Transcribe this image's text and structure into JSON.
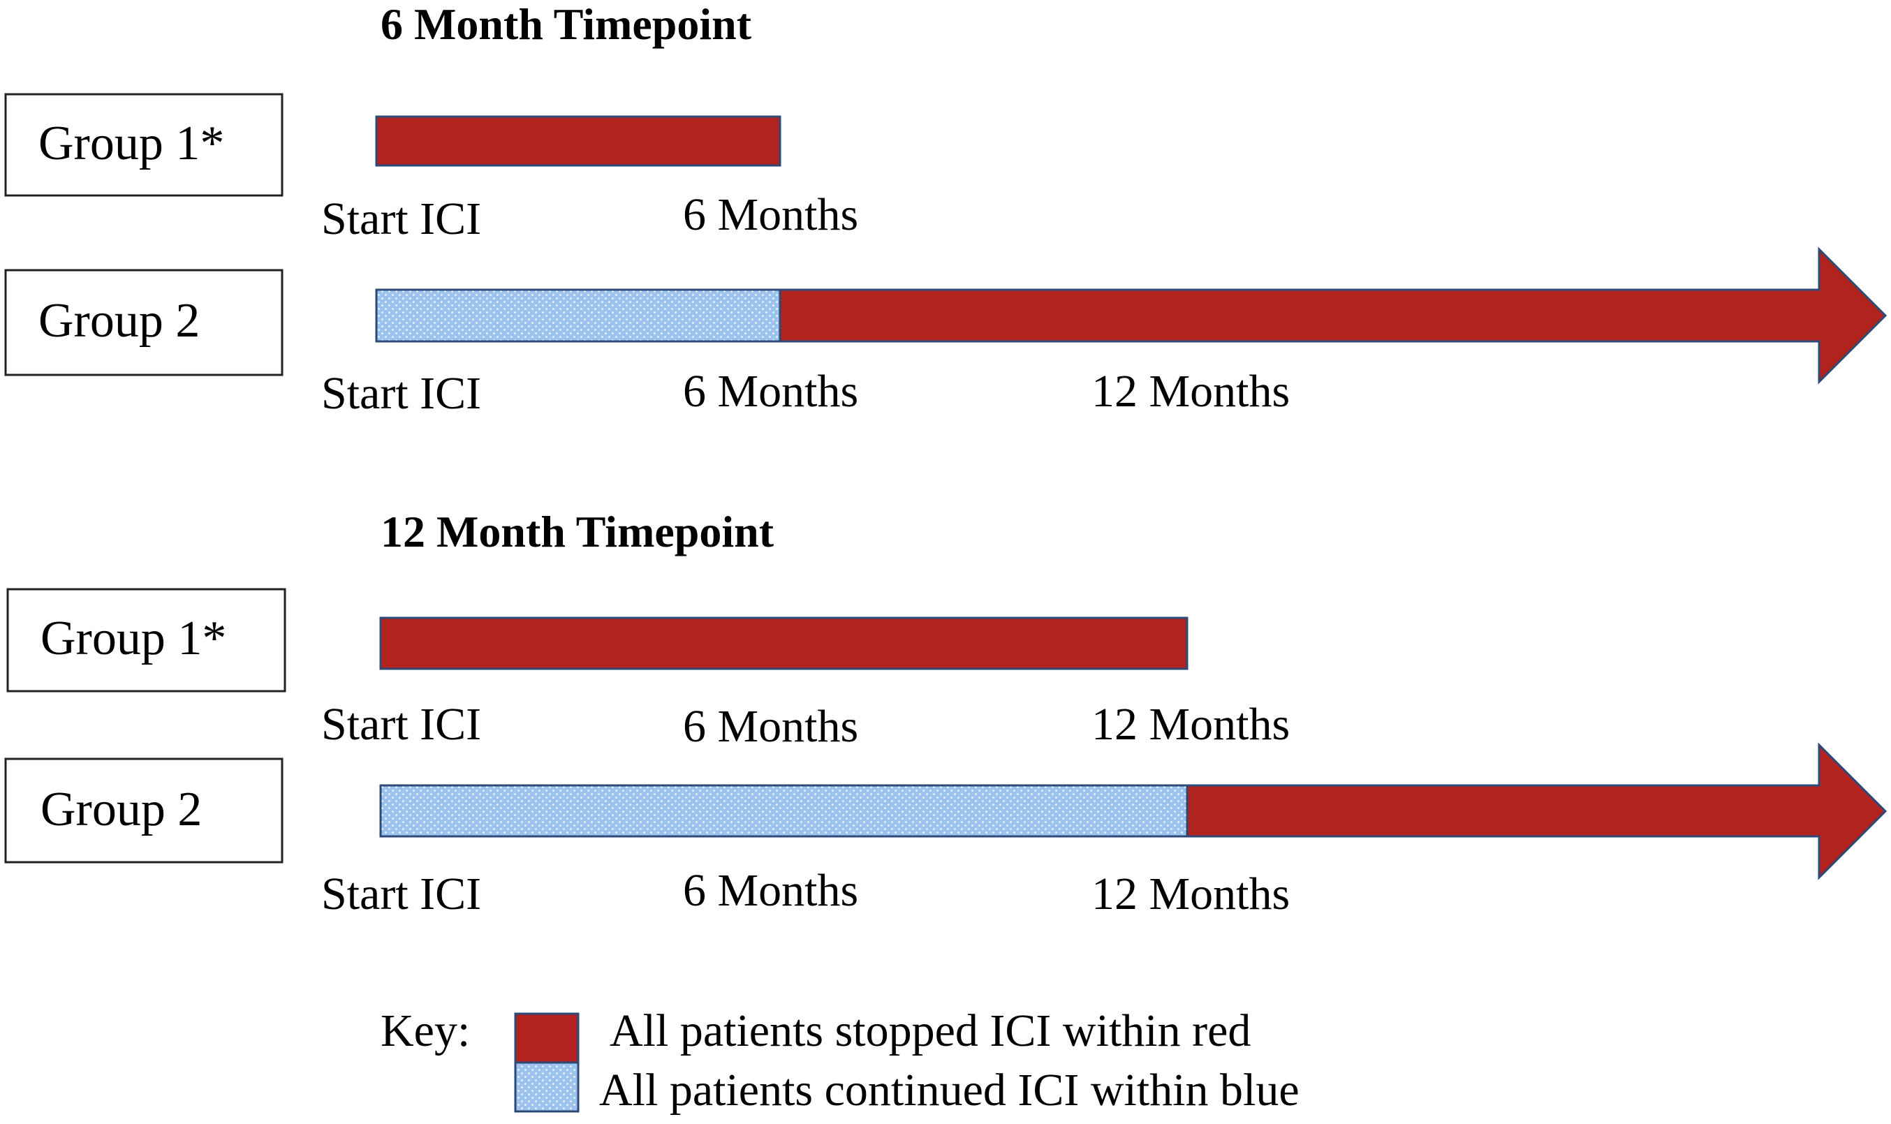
{
  "colors": {
    "stopped_red": "#B0231E",
    "continued_blue": "#9CC2EE",
    "dot_pattern": "#ffffff",
    "outline": "#2D4A78",
    "box_border": "#222222"
  },
  "panels": [
    {
      "title": "6 Month Timepoint",
      "groups": [
        {
          "label": "Group 1*",
          "segments": [
            {
              "status": "stopped",
              "from_month": 0,
              "to_month": 6
            }
          ],
          "arrow": false,
          "ticks": [
            "Start ICI",
            "6 Months"
          ]
        },
        {
          "label": "Group 2",
          "segments": [
            {
              "status": "continued",
              "from_month": 0,
              "to_month": 6
            },
            {
              "status": "stopped",
              "from_month": 6,
              "to_month": "open"
            }
          ],
          "arrow": true,
          "ticks": [
            "Start ICI",
            "6 Months",
            "12 Months"
          ]
        }
      ]
    },
    {
      "title": "12 Month Timepoint",
      "groups": [
        {
          "label": "Group 1*",
          "segments": [
            {
              "status": "stopped",
              "from_month": 0,
              "to_month": 12
            }
          ],
          "arrow": false,
          "ticks": [
            "Start ICI",
            "6 Months",
            "12 Months"
          ]
        },
        {
          "label": "Group 2",
          "segments": [
            {
              "status": "continued",
              "from_month": 0,
              "to_month": 12
            },
            {
              "status": "stopped",
              "from_month": 12,
              "to_month": "open"
            }
          ],
          "arrow": true,
          "ticks": [
            "Start ICI",
            "6 Months",
            "12 Months"
          ]
        }
      ]
    }
  ],
  "key": {
    "label": "Key:",
    "items": [
      {
        "status": "stopped",
        "text": "All patients stopped ICI within red"
      },
      {
        "status": "continued",
        "text": "All patients continued ICI within blue"
      }
    ]
  }
}
